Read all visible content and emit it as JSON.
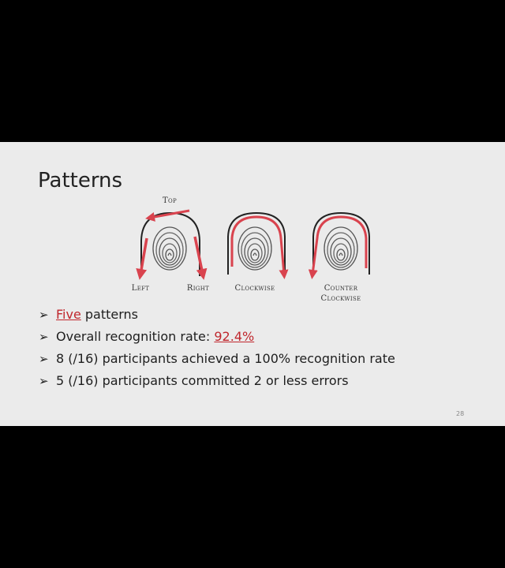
{
  "slide": {
    "title": "Patterns",
    "page_number": "28",
    "labels": {
      "top": "Top",
      "left": "Left",
      "right": "Right",
      "clockwise": "Clockwise",
      "counter1": "Counter",
      "counter2": "Clockwise"
    },
    "bullets": [
      {
        "pre": "",
        "hl": "Five",
        "post": " patterns"
      },
      {
        "pre": "Overall recognition rate: ",
        "hl": "92.4%",
        "post": ""
      },
      {
        "pre": "8 (/16) participants achieved a 100% recognition rate",
        "hl": "",
        "post": ""
      },
      {
        "pre": "5 (/16) participants committed 2 or less errors",
        "hl": "",
        "post": ""
      }
    ],
    "colors": {
      "arrow": "#d9434e",
      "highlight": "#c0272d",
      "background": "#ebebeb"
    }
  }
}
